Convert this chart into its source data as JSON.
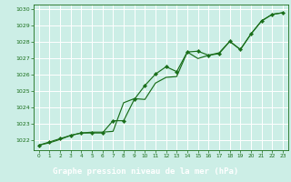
{
  "title": "Graphe pression niveau de la mer (hPa)",
  "bg_color": "#cceee6",
  "plot_bg_color": "#cceee6",
  "label_bg_color": "#2d8b2d",
  "label_text_color": "#ffffff",
  "grid_color": "#ffffff",
  "line_color": "#1a6e1a",
  "marker_color": "#1a6e1a",
  "xlim": [
    -0.5,
    23.5
  ],
  "ylim": [
    1021.4,
    1030.3
  ],
  "yticks": [
    1022,
    1023,
    1024,
    1025,
    1026,
    1027,
    1028,
    1029,
    1030
  ],
  "xticks": [
    0,
    1,
    2,
    3,
    4,
    5,
    6,
    7,
    8,
    9,
    10,
    11,
    12,
    13,
    14,
    15,
    16,
    17,
    18,
    19,
    20,
    21,
    22,
    23
  ],
  "series_main_x": [
    0,
    1,
    2,
    3,
    4,
    5,
    6,
    7,
    8,
    9,
    10,
    11,
    12,
    13,
    14,
    15,
    16,
    17,
    18,
    19,
    20,
    21,
    22,
    23
  ],
  "series_main_y": [
    1021.7,
    1021.9,
    1022.1,
    1022.3,
    1022.45,
    1022.45,
    1022.45,
    1023.2,
    1023.2,
    1024.5,
    1025.35,
    1026.05,
    1026.5,
    1026.2,
    1027.4,
    1027.45,
    1027.2,
    1027.3,
    1028.05,
    1027.55,
    1028.5,
    1029.3,
    1029.7,
    1029.8
  ],
  "series_trend_x": [
    0,
    1,
    2,
    3,
    4,
    5,
    6,
    7,
    8,
    9,
    10,
    11,
    12,
    13,
    14,
    15,
    16,
    17,
    18,
    19,
    20,
    21,
    22,
    23
  ],
  "series_trend_y": [
    1021.7,
    1021.85,
    1022.05,
    1022.3,
    1022.45,
    1022.5,
    1022.5,
    1022.55,
    1024.3,
    1024.55,
    1024.5,
    1025.5,
    1025.85,
    1025.9,
    1027.4,
    1027.0,
    1027.2,
    1027.35,
    1028.05,
    1027.55,
    1028.5,
    1029.3,
    1029.7,
    1029.8
  ]
}
